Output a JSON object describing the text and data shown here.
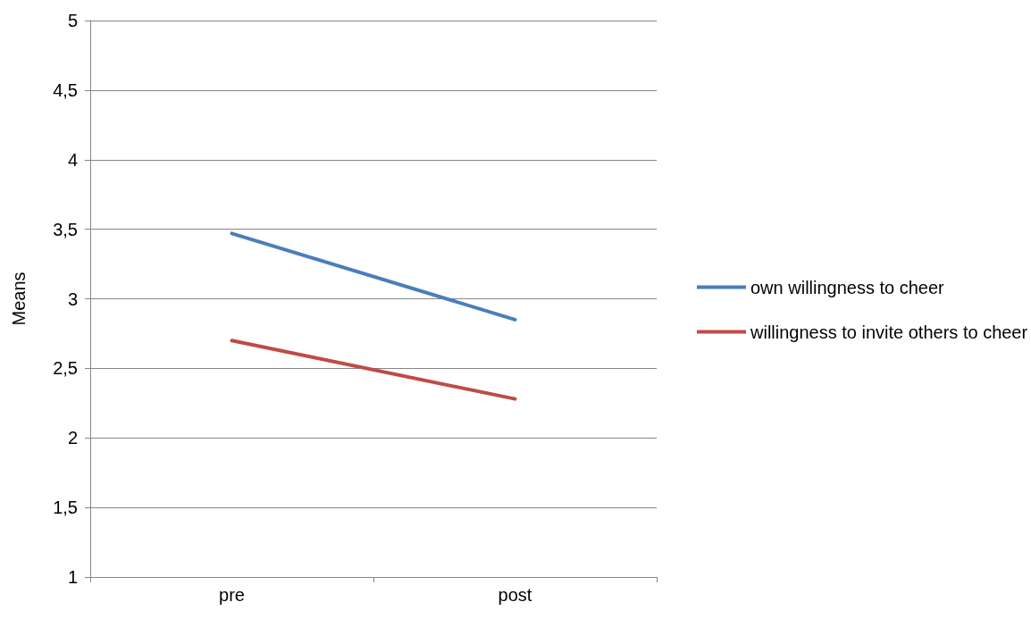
{
  "chart_data": {
    "type": "line",
    "ylabel": "Means",
    "categories": [
      "pre",
      "post"
    ],
    "series": [
      {
        "name": "own willingness to cheer",
        "color": "#4a7ebb",
        "values": [
          3.47,
          2.85
        ]
      },
      {
        "name": "willingness to invite others to cheer",
        "color": "#be4b48",
        "values": [
          2.7,
          2.28
        ]
      }
    ],
    "ylim": [
      1,
      5
    ],
    "yticks": [
      1,
      {
        "value": 1.5,
        "label": "1,5"
      },
      2,
      {
        "value": 2.5,
        "label": "2,5"
      },
      3,
      {
        "value": 3.5,
        "label": "3,5"
      },
      4,
      {
        "value": 4.5,
        "label": "4,5"
      },
      5
    ],
    "grid": "y",
    "legend": "right",
    "marker": "none",
    "line_style": "solid"
  }
}
